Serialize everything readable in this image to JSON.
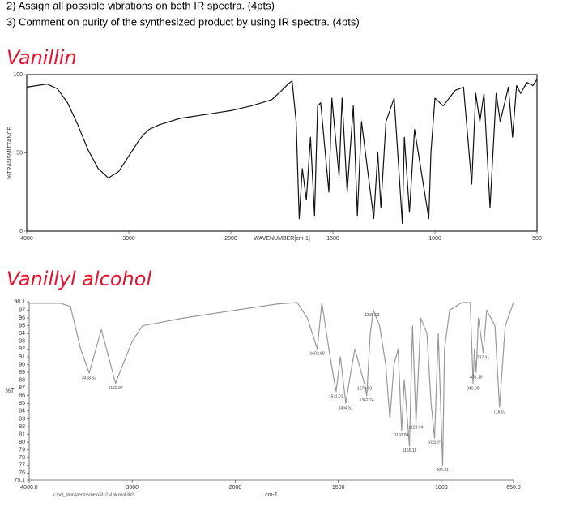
{
  "questions": [
    "2)  Assign all possible vibrations on both IR spectra. (4pts)",
    "3)  Comment on purity of the synthesized product by using IR spectra. (4pts)"
  ],
  "chart_data": [
    {
      "type": "line",
      "title": "Vanillin",
      "xlabel": "WAVENUMBER[cm-1]",
      "ylabel": "%TRANSMITTANCE",
      "x": [
        4000,
        3900,
        3800,
        3700,
        3600,
        3500,
        3400,
        3300,
        3200,
        3100,
        3000,
        2900,
        2850,
        2800,
        2700,
        2600,
        2500,
        2400,
        2300,
        2200,
        2100,
        2000,
        1900,
        1800,
        1750,
        1720,
        1700,
        1680,
        1665,
        1650,
        1630,
        1610,
        1590,
        1575,
        1560,
        1520,
        1505,
        1470,
        1455,
        1430,
        1400,
        1380,
        1360,
        1300,
        1280,
        1265,
        1240,
        1200,
        1160,
        1150,
        1125,
        1100,
        1030,
        1020,
        1000,
        960,
        900,
        860,
        820,
        800,
        780,
        760,
        730,
        700,
        680,
        640,
        620,
        600,
        580,
        550,
        520,
        500
      ],
      "series": [
        {
          "name": "Vanillin",
          "color": "#111111",
          "values": [
            92,
            93,
            94,
            91,
            82,
            68,
            52,
            40,
            34,
            38,
            48,
            58,
            62,
            65,
            68,
            70,
            72,
            73,
            74,
            75,
            76,
            77,
            80,
            84,
            90,
            94,
            96,
            70,
            8,
            40,
            20,
            60,
            10,
            80,
            82,
            25,
            85,
            35,
            85,
            25,
            80,
            10,
            70,
            8,
            50,
            15,
            70,
            85,
            5,
            60,
            12,
            65,
            8,
            50,
            85,
            80,
            90,
            92,
            30,
            88,
            70,
            88,
            15,
            88,
            70,
            92,
            60,
            93,
            88,
            95,
            93,
            97
          ]
        }
      ],
      "xlim": [
        4000,
        500
      ],
      "xticks": [
        4000,
        3000,
        2000,
        1500,
        1000,
        500
      ],
      "ylim": [
        0,
        100
      ],
      "yticks": [
        0,
        50,
        100
      ],
      "frame": true
    },
    {
      "type": "line",
      "title": "Vanillyl alcohol",
      "xlabel": "cm-1",
      "ylabel": "%T",
      "footer": "c:\\pel_data\\spectra\\chem3312 vl alcohol.002",
      "x": [
        4000,
        3800,
        3700,
        3600,
        3500,
        3418,
        3300,
        3162,
        3000,
        2900,
        2500,
        2000,
        1800,
        1700,
        1650,
        1602,
        1580,
        1540,
        1511,
        1490,
        1464,
        1440,
        1420,
        1373,
        1362,
        1345,
        1330,
        1300,
        1270,
        1250,
        1230,
        1210,
        1193,
        1180,
        1155,
        1140,
        1123,
        1100,
        1070,
        1050,
        1033,
        1015,
        994,
        985,
        960,
        900,
        860,
        846,
        840,
        831,
        820,
        797,
        780,
        740,
        718,
        690,
        650
      ],
      "series": [
        {
          "name": "Vanillyl alcohol",
          "color": "#999999",
          "values": [
            97.9,
            97.9,
            97.9,
            97.5,
            92,
            88.9,
            94.5,
            87.6,
            93,
            95,
            96,
            97,
            97.8,
            98,
            96,
            92,
            98,
            91,
            86.5,
            91,
            85,
            89,
            92,
            87.5,
            86,
            94,
            97,
            95,
            90,
            83,
            90,
            92,
            81.5,
            88,
            79.5,
            95,
            82.5,
            96,
            94,
            85,
            80.5,
            94,
            77,
            92,
            97,
            98,
            98,
            87.5,
            92,
            89,
            96,
            91.5,
            97,
            95,
            84.5,
            95,
            98
          ]
        }
      ],
      "annotations": [
        {
          "x": 3418.62,
          "label": "3418.62"
        },
        {
          "x": 3162.07,
          "label": "3162.07"
        },
        {
          "x": 1602.69,
          "label": "1602.69"
        },
        {
          "x": 1511.02,
          "label": "1511.02"
        },
        {
          "x": 1464.51,
          "label": "1464.51"
        },
        {
          "x": 1373.03,
          "label": "1373.03"
        },
        {
          "x": 1362.74,
          "label": "1362.74"
        },
        {
          "x": 1335.93,
          "label": "1335.93"
        },
        {
          "x": 1193.84,
          "label": "1193.84"
        },
        {
          "x": 1155.11,
          "label": "1155.11"
        },
        {
          "x": 1123.94,
          "label": "1123.94"
        },
        {
          "x": 1033.21,
          "label": "1033.21"
        },
        {
          "x": 994.81,
          "label": "994.81"
        },
        {
          "x": 846.9,
          "label": "846.90"
        },
        {
          "x": 831.19,
          "label": "831.19"
        },
        {
          "x": 797.41,
          "label": "797.41"
        },
        {
          "x": 718.07,
          "label": "718.07"
        }
      ],
      "xlim": [
        4000,
        650
      ],
      "xticks": [
        {
          "value": 4000,
          "label": "4000.0"
        },
        3000,
        2000,
        1500,
        1000,
        {
          "value": 650,
          "label": "650.0"
        }
      ],
      "ylim": [
        75.1,
        98.1
      ],
      "yticks": [
        75.1,
        76,
        77,
        78,
        79,
        80,
        81,
        82,
        83,
        84,
        85,
        86,
        87,
        88,
        89,
        90,
        91,
        92,
        93,
        94,
        95,
        96,
        97,
        98.1
      ],
      "frame": false
    }
  ]
}
